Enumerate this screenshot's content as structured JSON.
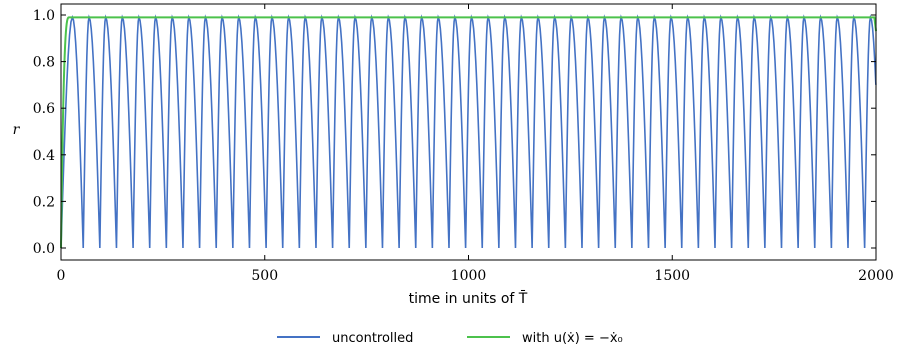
{
  "chart_data": {
    "type": "line",
    "title": "",
    "xlabel": "time in units of T̄",
    "ylabel": "r",
    "xlim": [
      0,
      2000
    ],
    "ylim": [
      0,
      1.0
    ],
    "xticks": [
      0,
      500,
      1000,
      1500,
      2000
    ],
    "yticks": [
      0.0,
      0.2,
      0.4,
      0.6,
      0.8,
      1.0
    ],
    "xtick_labels": [
      "0",
      "500",
      "1000",
      "1500",
      "2000"
    ],
    "ytick_labels": [
      "0.0",
      "0.2",
      "0.4",
      "0.6",
      "0.8",
      "1.0"
    ],
    "grid": false,
    "legend_position": "bottom",
    "series": [
      {
        "name": "uncontrolled",
        "color": "#4472c4",
        "shape": "periodic rise from 0 to 0.99 and back",
        "period": 40.8,
        "peak": 0.99,
        "trough": 0.0,
        "first_peak": 28
      },
      {
        "name": "with u(ẋ) = −ẋ₀",
        "color": "#4cc24c",
        "shape": "rises from 0 to ~0.99 within the first ~20 time units, stays near 0.99 until t=2000",
        "rise_end": 20,
        "plateau": 0.99
      }
    ]
  },
  "legend": {
    "uncontrolled_label": "uncontrolled",
    "controlled_label": "with u(ẋ) = −ẋ₀"
  }
}
